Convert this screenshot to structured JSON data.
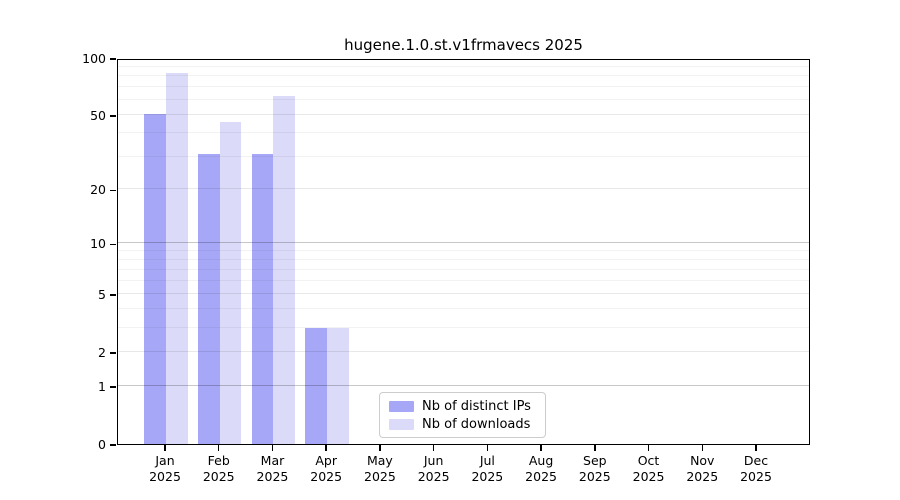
{
  "title": "hugene.1.0.st.v1frmavecs 2025",
  "chart_data": {
    "type": "bar",
    "title": "hugene.1.0.st.v1frmavecs 2025",
    "categories": [
      "Jan",
      "Feb",
      "Mar",
      "Apr",
      "May",
      "Jun",
      "Jul",
      "Aug",
      "Sep",
      "Oct",
      "Nov",
      "Dec"
    ],
    "x_year_label": "2025",
    "series": [
      {
        "name": "Nb of distinct IPs",
        "color": "#a7a7f7",
        "values": [
          51,
          31,
          31,
          3,
          0,
          0,
          0,
          0,
          0,
          0,
          0,
          0
        ]
      },
      {
        "name": "Nb of downloads",
        "color": "#dbdbf9",
        "values": [
          83,
          46,
          63,
          3,
          0,
          0,
          0,
          0,
          0,
          0,
          0,
          0
        ]
      }
    ],
    "xlabel": "",
    "ylabel": "",
    "yscale": "log1p",
    "ylim": [
      0,
      100
    ],
    "yticks": [
      100,
      50,
      20,
      10,
      5,
      2,
      1,
      0
    ],
    "yticks_emphasized": [
      10,
      1
    ],
    "yticks_minor": [
      3,
      4,
      6,
      7,
      8,
      9,
      30,
      40,
      60,
      70,
      80,
      90
    ],
    "grid": true,
    "grid_over_bars": true,
    "legend_position": "inside lower-center"
  },
  "colors": {
    "distinct_ips": "#a7a7f7",
    "downloads": "#dbdbf9",
    "grid_minor": "rgba(0,0,0,0.05)",
    "grid_major": "rgba(0,0,0,0.09)",
    "grid_emphasized": "rgba(0,0,0,0.22)",
    "legend_border": "#cccccc"
  }
}
